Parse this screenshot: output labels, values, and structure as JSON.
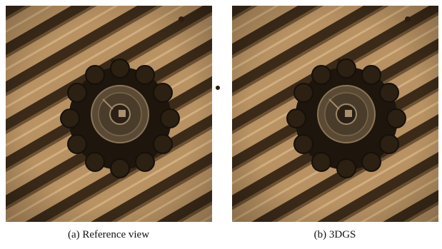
{
  "figure": {
    "panels": [
      {
        "caption": "(a) Reference view"
      },
      {
        "caption": "(b) 3DGS"
      }
    ]
  }
}
